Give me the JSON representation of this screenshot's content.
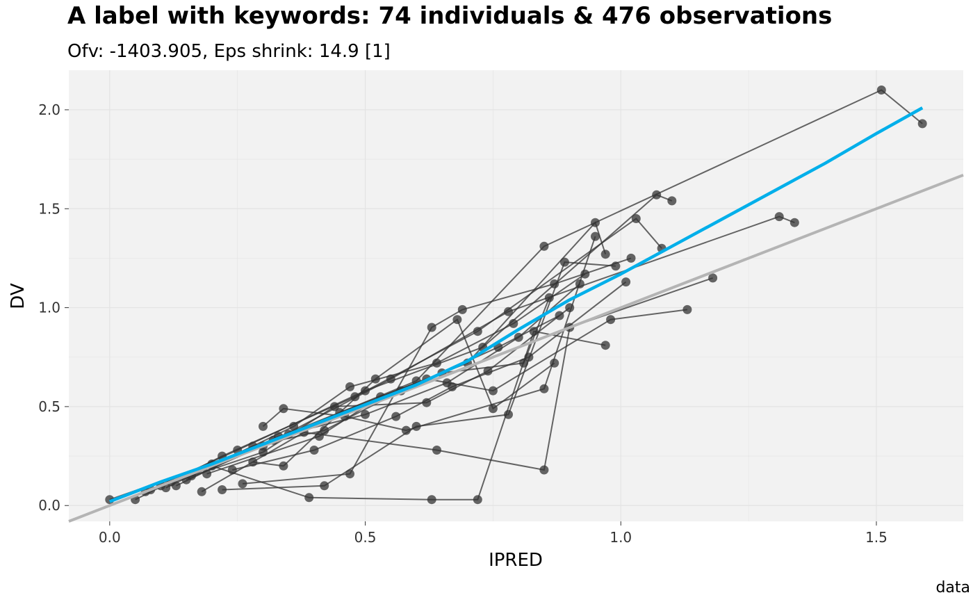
{
  "chart_data": {
    "type": "scatter",
    "title": "A label with keywords: 74 individuals & 476 observations",
    "subtitle": "Ofv: -1403.905, Eps shrink: 14.9 [1]",
    "xlabel": "IPRED",
    "ylabel": "DV",
    "caption": "data",
    "xlim": [
      -0.08,
      1.67
    ],
    "ylim": [
      -0.08,
      2.2
    ],
    "x_ticks": [
      {
        "value": 0.0,
        "label": "0.0"
      },
      {
        "value": 0.5,
        "label": "0.5"
      },
      {
        "value": 1.0,
        "label": "1.0"
      },
      {
        "value": 1.5,
        "label": "1.5"
      }
    ],
    "y_ticks": [
      {
        "value": 0.0,
        "label": "0.0"
      },
      {
        "value": 0.5,
        "label": "0.5"
      },
      {
        "value": 1.0,
        "label": "1.0"
      },
      {
        "value": 1.5,
        "label": "1.5"
      },
      {
        "value": 2.0,
        "label": "2.0"
      }
    ],
    "grid": true,
    "colors": {
      "panel": "#f2f2f2",
      "grid": "#e3e3e3",
      "points": "#333333",
      "smooth": "#00afea",
      "identity": "#b4b4b4"
    },
    "identity_line": {
      "slope": 1,
      "intercept": 0
    },
    "smooth_line": [
      [
        0.0,
        0.02
      ],
      [
        0.1,
        0.12
      ],
      [
        0.2,
        0.21
      ],
      [
        0.3,
        0.31
      ],
      [
        0.4,
        0.41
      ],
      [
        0.5,
        0.51
      ],
      [
        0.6,
        0.61
      ],
      [
        0.7,
        0.73
      ],
      [
        0.8,
        0.89
      ],
      [
        0.9,
        1.04
      ],
      [
        1.0,
        1.17
      ],
      [
        1.1,
        1.31
      ],
      [
        1.2,
        1.45
      ],
      [
        1.3,
        1.59
      ],
      [
        1.4,
        1.73
      ],
      [
        1.5,
        1.88
      ],
      [
        1.59,
        2.01
      ]
    ],
    "individual_traces": [
      [
        [
          0.0,
          0.03
        ],
        [
          0.2,
          0.21
        ],
        [
          0.45,
          0.47
        ],
        [
          0.7,
          0.72
        ],
        [
          0.95,
          1.43
        ],
        [
          0.97,
          1.27
        ]
      ],
      [
        [
          0.05,
          0.03
        ],
        [
          0.22,
          0.25
        ],
        [
          0.48,
          0.55
        ],
        [
          0.72,
          0.88
        ],
        [
          1.03,
          1.45
        ],
        [
          1.08,
          1.3
        ]
      ],
      [
        [
          0.07,
          0.07
        ],
        [
          0.25,
          0.28
        ],
        [
          0.5,
          0.58
        ],
        [
          0.73,
          0.8
        ],
        [
          1.07,
          1.57
        ],
        [
          1.1,
          1.54
        ]
      ],
      [
        [
          0.1,
          0.1
        ],
        [
          0.3,
          0.3
        ],
        [
          0.55,
          0.64
        ],
        [
          0.78,
          0.98
        ],
        [
          1.31,
          1.46
        ],
        [
          1.34,
          1.43
        ]
      ],
      [
        [
          0.12,
          0.12
        ],
        [
          0.32,
          0.33
        ],
        [
          0.6,
          0.63
        ],
        [
          0.85,
          1.31
        ],
        [
          1.51,
          2.1
        ],
        [
          1.59,
          1.93
        ]
      ],
      [
        [
          0.15,
          0.13
        ],
        [
          0.35,
          0.36
        ],
        [
          0.62,
          0.64
        ],
        [
          0.75,
          0.58
        ],
        [
          0.98,
          0.94
        ],
        [
          1.13,
          0.99
        ]
      ],
      [
        [
          0.18,
          0.07
        ],
        [
          0.38,
          0.37
        ],
        [
          0.64,
          0.28
        ],
        [
          0.85,
          0.18
        ],
        [
          0.9,
          0.9
        ],
        [
          1.18,
          1.15
        ]
      ],
      [
        [
          0.2,
          0.2
        ],
        [
          0.39,
          0.04
        ],
        [
          0.63,
          0.03
        ],
        [
          0.72,
          0.03
        ],
        [
          0.83,
          0.88
        ],
        [
          0.97,
          0.81
        ]
      ],
      [
        [
          0.22,
          0.08
        ],
        [
          0.42,
          0.1
        ],
        [
          0.6,
          0.4
        ],
        [
          0.78,
          0.46
        ],
        [
          0.89,
          1.23
        ],
        [
          0.99,
          1.21
        ]
      ],
      [
        [
          0.26,
          0.11
        ],
        [
          0.47,
          0.16
        ],
        [
          0.63,
          0.9
        ],
        [
          0.69,
          0.99
        ],
        [
          0.87,
          1.12
        ],
        [
          1.02,
          1.25
        ]
      ],
      [
        [
          0.3,
          0.4
        ],
        [
          0.34,
          0.49
        ],
        [
          0.46,
          0.45
        ],
        [
          0.58,
          0.38
        ],
        [
          0.85,
          0.59
        ],
        [
          0.95,
          1.36
        ]
      ],
      [
        [
          0.28,
          0.22
        ],
        [
          0.34,
          0.2
        ],
        [
          0.52,
          0.64
        ],
        [
          0.68,
          0.94
        ],
        [
          0.75,
          0.49
        ],
        [
          0.87,
          0.72
        ]
      ],
      [
        [
          0.24,
          0.18
        ],
        [
          0.4,
          0.28
        ],
        [
          0.56,
          0.45
        ],
        [
          0.67,
          0.6
        ],
        [
          0.82,
          0.75
        ],
        [
          1.01,
          1.13
        ]
      ],
      [
        [
          0.16,
          0.15
        ],
        [
          0.36,
          0.4
        ],
        [
          0.47,
          0.6
        ],
        [
          0.64,
          0.72
        ],
        [
          0.79,
          0.92
        ],
        [
          0.93,
          1.17
        ]
      ],
      [
        [
          0.08,
          0.08
        ],
        [
          0.3,
          0.27
        ],
        [
          0.44,
          0.5
        ],
        [
          0.62,
          0.52
        ],
        [
          0.74,
          0.68
        ],
        [
          0.9,
          1.0
        ]
      ],
      [
        [
          0.13,
          0.1
        ],
        [
          0.33,
          0.35
        ],
        [
          0.5,
          0.46
        ],
        [
          0.66,
          0.62
        ],
        [
          0.8,
          0.85
        ],
        [
          0.92,
          1.12
        ]
      ],
      [
        [
          0.11,
          0.09
        ],
        [
          0.28,
          0.3
        ],
        [
          0.42,
          0.38
        ],
        [
          0.57,
          0.58
        ],
        [
          0.76,
          0.8
        ],
        [
          0.88,
          0.96
        ]
      ],
      [
        [
          0.19,
          0.16
        ],
        [
          0.41,
          0.35
        ],
        [
          0.53,
          0.55
        ],
        [
          0.65,
          0.67
        ],
        [
          0.81,
          0.72
        ],
        [
          0.86,
          1.05
        ]
      ]
    ]
  }
}
